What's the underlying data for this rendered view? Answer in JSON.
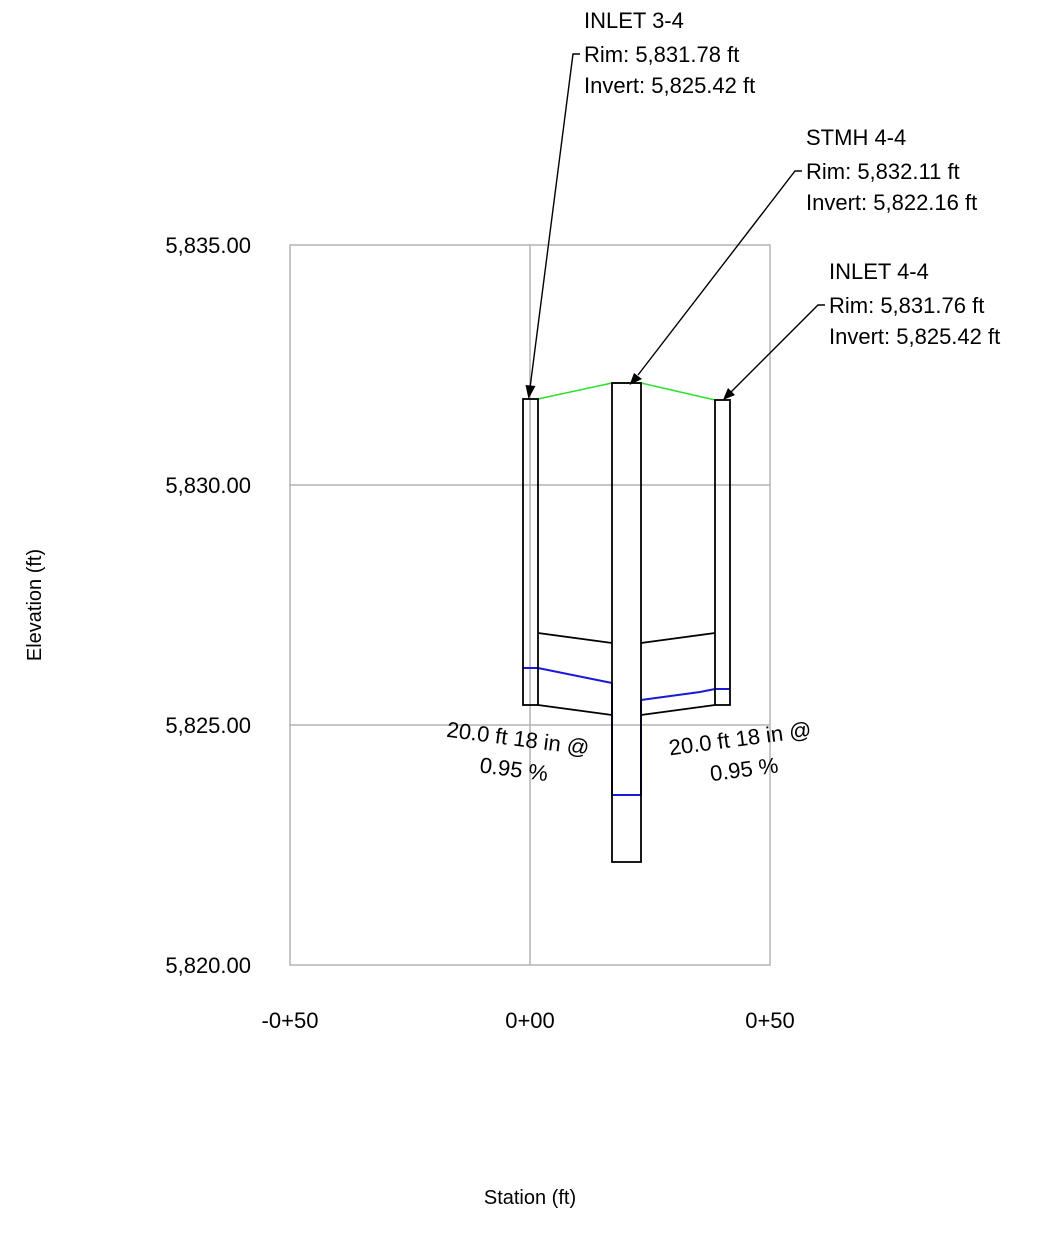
{
  "axes": {
    "xlabel": "Station (ft)",
    "ylabel": "Elevation (ft)",
    "y_ticks": [
      "5,835.00",
      "5,830.00",
      "5,825.00",
      "5,820.00"
    ],
    "x_ticks": [
      "-0+50",
      "0+00",
      "0+50"
    ],
    "y_range": [
      5820,
      5835
    ],
    "x_range": [
      -50,
      50
    ],
    "grid": true
  },
  "structures": [
    {
      "id": "inlet-3-4",
      "name": "INLET 3-4",
      "rim_label": "Rim: 5,831.78 ft",
      "invert_label": "Invert: 5,825.42 ft",
      "rim": 5831.78,
      "invert": 5825.42
    },
    {
      "id": "stmh-4-4",
      "name": "STMH 4-4",
      "rim_label": "Rim: 5,832.11 ft",
      "invert_label": "Invert: 5,822.16 ft",
      "rim": 5832.11,
      "invert": 5822.16,
      "hgl": 5823.5
    },
    {
      "id": "inlet-4-4",
      "name": "INLET 4-4",
      "rim_label": "Rim: 5,831.76 ft",
      "invert_label": "Invert: 5,825.42 ft",
      "rim": 5831.76,
      "invert": 5825.42
    }
  ],
  "pipes": [
    {
      "id": "pipe-left",
      "line1": "20.0 ft 18 in @",
      "line2": "0.95 %",
      "length_ft": 20.0,
      "diameter_in": 18,
      "slope_pct": 0.95,
      "hgl_upstream": 5826.15,
      "hgl_downstream": 5825.8
    },
    {
      "id": "pipe-right",
      "line1": "20.0 ft 18 in @",
      "line2": "0.95 %",
      "length_ft": 20.0,
      "diameter_in": 18,
      "slope_pct": 0.95,
      "hgl_upstream": 5825.75,
      "hgl_downstream": 5825.5
    }
  ],
  "colors": {
    "grid": "#b4b4b4",
    "structure": "#000000",
    "ground": "#2ee02e",
    "hgl": "#1a1ad6"
  }
}
